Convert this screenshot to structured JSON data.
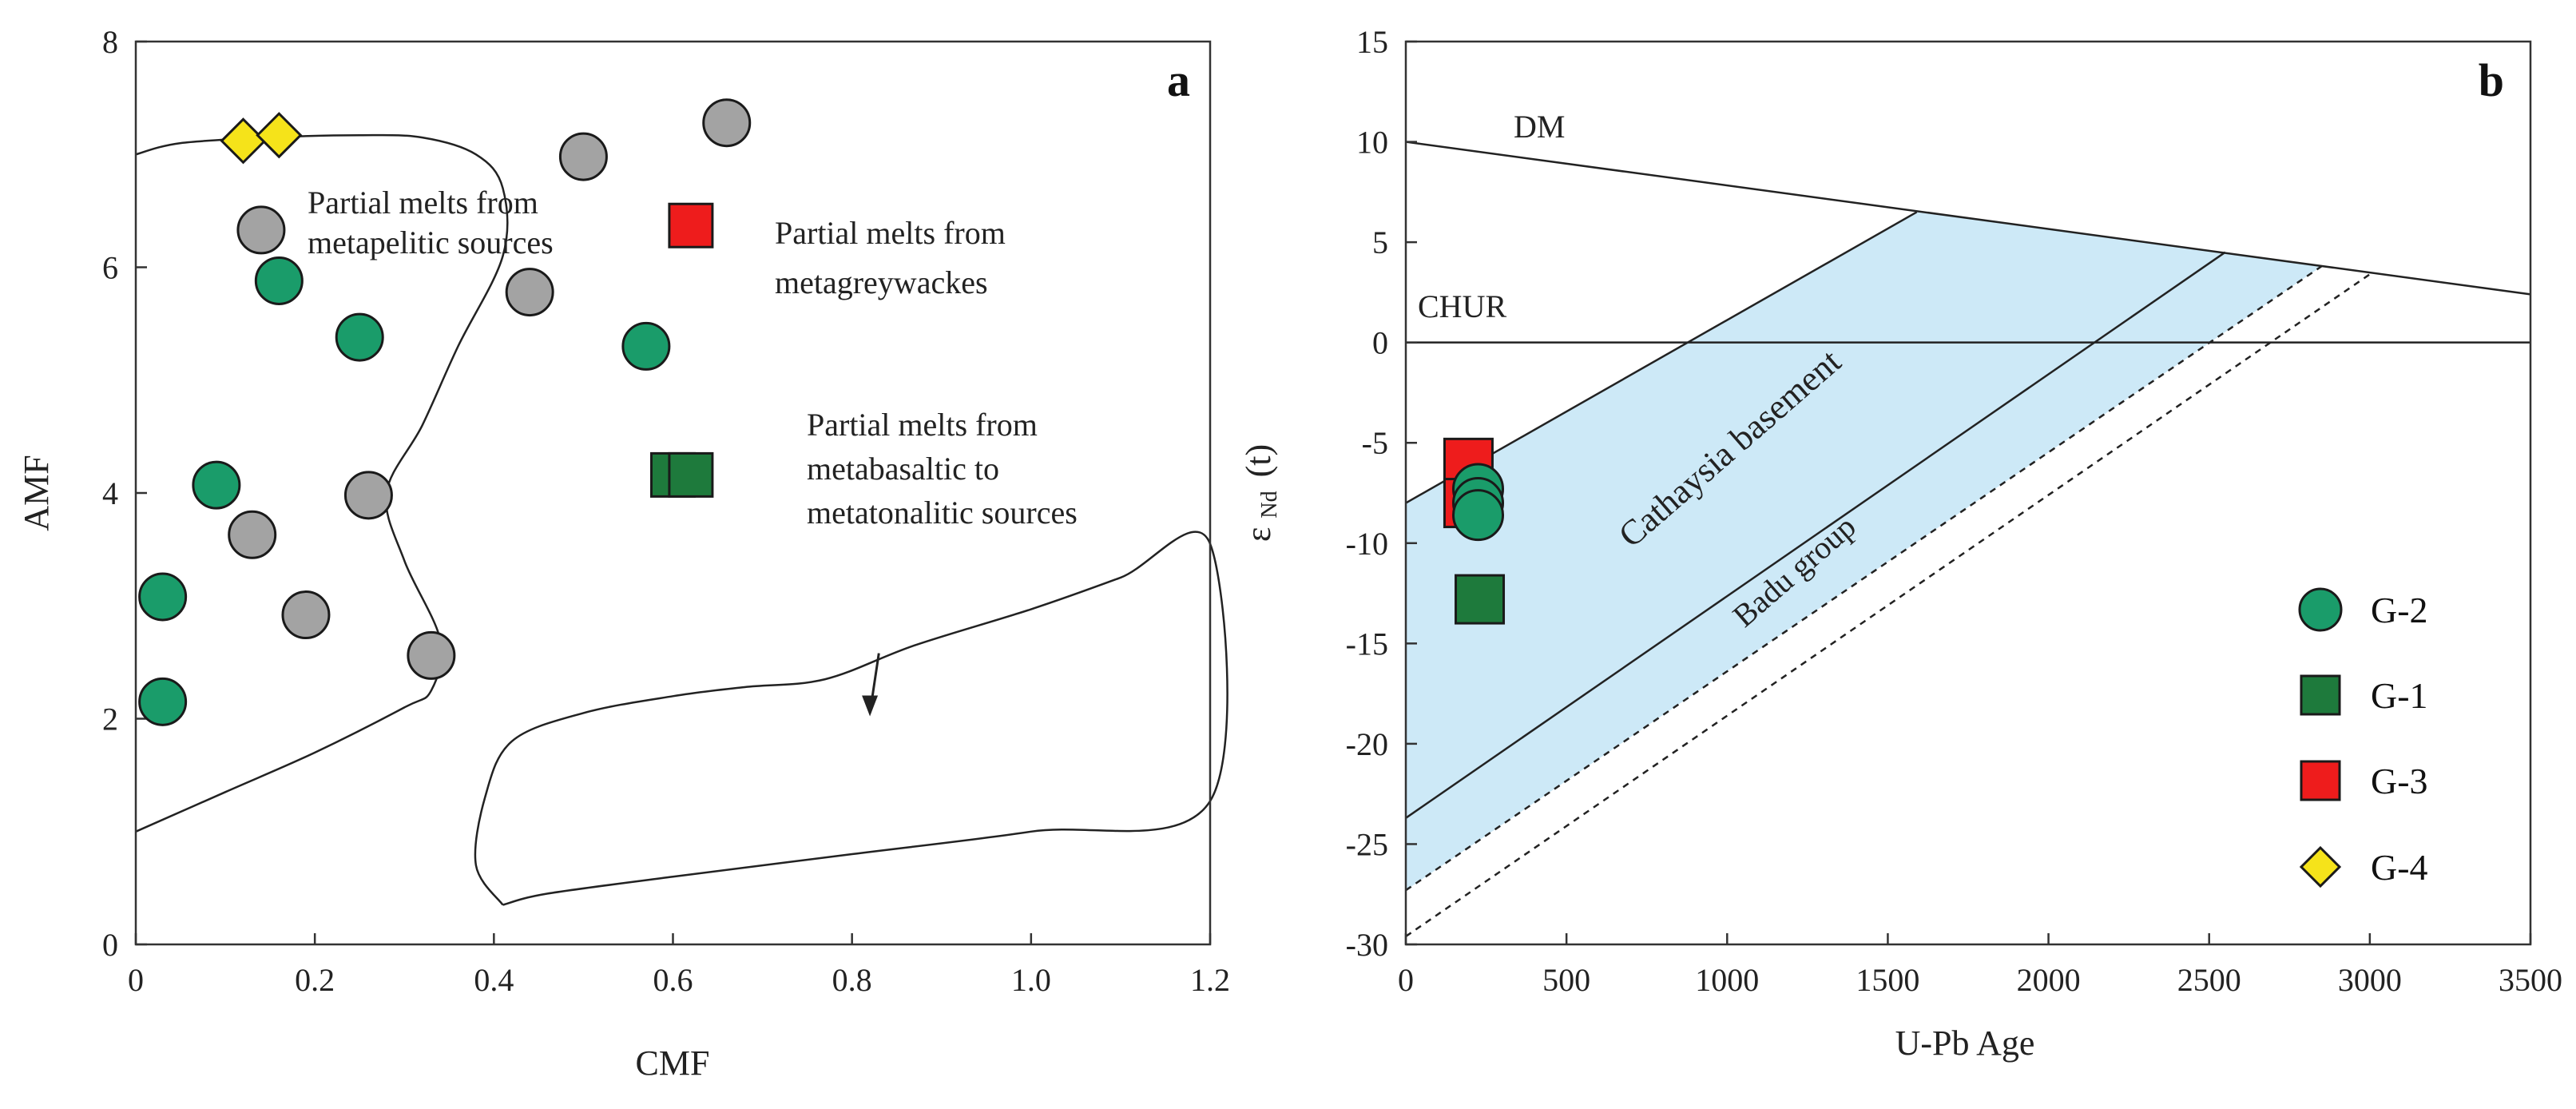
{
  "colors": {
    "G-2": "#1a9c6a",
    "G-1": "#1e7a3c",
    "G-3": "#ee1c1c",
    "G-4": "#f5e31a",
    "unclassified": "#a3a3a3",
    "basement_fill": "#cde9f7"
  },
  "chart_data": [
    {
      "type": "scatter",
      "panel_label": "a",
      "xlabel": "CMF",
      "ylabel": "AMF",
      "xlim": [
        0,
        1.2
      ],
      "ylim": [
        0,
        8
      ],
      "xticks": [
        "0",
        "0.2",
        "0.4",
        "0.6",
        "0.8",
        "1.0",
        "1.2"
      ],
      "yticks": [
        "0",
        "2",
        "4",
        "6",
        "8"
      ],
      "grid": false,
      "annotations": [
        {
          "lines": [
            "Partial melts from",
            "metapelitic sources"
          ]
        },
        {
          "lines": [
            "Partial melts from",
            "metagreywackes"
          ]
        },
        {
          "lines": [
            "Partial melts from",
            "metabasaltic  to",
            "metatonalitic sources"
          ]
        }
      ],
      "fields": {
        "metapelitic_boundary": [
          [
            0,
            7.0
          ],
          [
            0.05,
            7.1
          ],
          [
            0.15,
            7.15
          ],
          [
            0.25,
            7.17
          ],
          [
            0.32,
            7.15
          ],
          [
            0.38,
            7.0
          ],
          [
            0.41,
            6.7
          ],
          [
            0.41,
            6.1
          ],
          [
            0.36,
            5.3
          ],
          [
            0.32,
            4.6
          ],
          [
            0.28,
            4.0
          ],
          [
            0.3,
            3.4
          ],
          [
            0.34,
            2.7
          ],
          [
            0.33,
            2.25
          ],
          [
            0.3,
            2.1
          ],
          [
            0.2,
            1.7
          ],
          [
            0.1,
            1.35
          ],
          [
            0,
            1.0
          ]
        ],
        "metabasaltic_region": [
          [
            0.41,
            0.35
          ],
          [
            0.38,
            0.7
          ],
          [
            0.39,
            1.3
          ],
          [
            0.42,
            1.8
          ],
          [
            0.5,
            2.05
          ],
          [
            0.6,
            2.2
          ],
          [
            0.68,
            2.28
          ],
          [
            0.77,
            2.35
          ],
          [
            0.87,
            2.65
          ],
          [
            1.0,
            2.97
          ],
          [
            1.1,
            3.25
          ],
          [
            1.2,
            3.55
          ],
          [
            1.2,
            1.27
          ],
          [
            1.0,
            1.0
          ],
          [
            0.8,
            0.8
          ],
          [
            0.6,
            0.6
          ],
          [
            0.46,
            0.45
          ],
          [
            0.41,
            0.35
          ]
        ],
        "arrow": {
          "from": [
            0.83,
            2.58
          ],
          "to": [
            0.82,
            2.05
          ]
        }
      },
      "series": [
        {
          "name": "G-2",
          "marker": "circle",
          "points": [
            [
              0.16,
              5.88
            ],
            [
              0.25,
              5.38
            ],
            [
              0.57,
              5.3
            ],
            [
              0.09,
              4.07
            ],
            [
              0.03,
              3.08
            ],
            [
              0.03,
              2.15
            ]
          ]
        },
        {
          "name": "G-1",
          "marker": "square",
          "points": [
            [
              0.6,
              4.16
            ],
            [
              0.62,
              4.16
            ]
          ]
        },
        {
          "name": "G-3",
          "marker": "square",
          "points": [
            [
              0.62,
              6.37
            ]
          ]
        },
        {
          "name": "G-4",
          "marker": "diamond",
          "points": [
            [
              0.12,
              7.12
            ],
            [
              0.16,
              7.17
            ]
          ]
        },
        {
          "marker": "circle",
          "points": [
            [
              0.66,
              7.28
            ],
            [
              0.5,
              6.98
            ],
            [
              0.14,
              6.33
            ],
            [
              0.44,
              5.78
            ],
            [
              0.26,
              3.98
            ],
            [
              0.13,
              3.63
            ],
            [
              0.19,
              2.92
            ],
            [
              0.33,
              2.56
            ]
          ]
        }
      ]
    },
    {
      "type": "line",
      "panel_label": "b",
      "xlabel": "U-Pb Age",
      "ylabel": "ε Nd (t)",
      "ylabel_main": "ε",
      "ylabel_sub": "Nd",
      "ylabel_paren": "(t)",
      "xlim": [
        0,
        3500
      ],
      "ylim": [
        -30,
        15
      ],
      "xticks": [
        "0",
        "500",
        "1000",
        "1500",
        "2000",
        "2500",
        "3000",
        "3500"
      ],
      "yticks": [
        "-30",
        "-25",
        "-20",
        "-15",
        "-10",
        "-5",
        "0",
        "5",
        "10",
        "15"
      ],
      "grid": false,
      "lines": {
        "DM": [
          [
            0,
            10
          ],
          [
            3500,
            2.4
          ]
        ],
        "CHUR": [
          [
            0,
            0
          ],
          [
            3500,
            0
          ]
        ],
        "basement_upper": [
          [
            0,
            -8
          ],
          [
            1590,
            6.5
          ]
        ],
        "basement_middle": [
          [
            0,
            -23.7
          ],
          [
            2550,
            4.5
          ]
        ],
        "badu_upper": [
          [
            0,
            -27.3
          ],
          [
            2850,
            3.8
          ]
        ],
        "badu_lower": [
          [
            0,
            -29.6
          ],
          [
            3000,
            3.4
          ]
        ]
      },
      "shaded_region": [
        [
          0,
          -8
        ],
        [
          1590,
          6.5
        ],
        [
          2850,
          3.8
        ],
        [
          0,
          -27.3
        ]
      ],
      "labels": {
        "dm": "DM",
        "chur": "CHUR",
        "basement": "Cathaysia basement",
        "badu": "Badu group"
      },
      "series": [
        {
          "name": "G-3",
          "marker": "square",
          "points": [
            [
              195,
              -6.0
            ],
            [
              195,
              -8.0
            ]
          ]
        },
        {
          "name": "G-2",
          "marker": "circle",
          "points": [
            [
              225,
              -7.3
            ],
            [
              225,
              -8.0
            ],
            [
              225,
              -8.6
            ]
          ]
        },
        {
          "name": "G-1",
          "marker": "square",
          "points": [
            [
              230,
              -12.8
            ]
          ]
        }
      ],
      "legend": {
        "position": "right",
        "entries": [
          {
            "label": "G-2",
            "marker": "circle"
          },
          {
            "label": "G-1",
            "marker": "square"
          },
          {
            "label": "G-3",
            "marker": "square"
          },
          {
            "label": "G-4",
            "marker": "diamond"
          }
        ]
      }
    }
  ]
}
